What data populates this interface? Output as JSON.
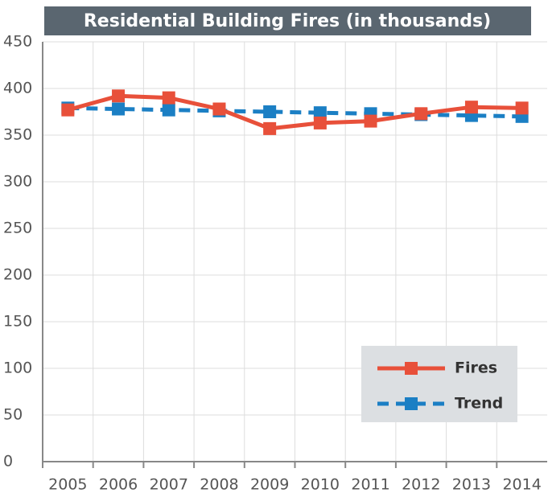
{
  "chart_data": {
    "type": "line",
    "title": "Residential Building Fires (in thousands)",
    "categories": [
      "2005",
      "2006",
      "2007",
      "2008",
      "2009",
      "2010",
      "2011",
      "2012",
      "2013",
      "2014"
    ],
    "series": [
      {
        "name": "Fires",
        "color": "#e8503a",
        "dash": false,
        "values": [
          377,
          392,
          390,
          378,
          357,
          363,
          365,
          373,
          380,
          379
        ]
      },
      {
        "name": "Trend",
        "color": "#1b7fc4",
        "dash": true,
        "values": [
          379,
          378,
          377,
          376,
          375,
          374,
          373,
          372,
          371,
          370
        ]
      }
    ],
    "ylim": [
      0,
      450
    ],
    "yticks": [
      0,
      50,
      100,
      150,
      200,
      250,
      300,
      350,
      400,
      450
    ],
    "grid": true,
    "legend": "lower right"
  }
}
